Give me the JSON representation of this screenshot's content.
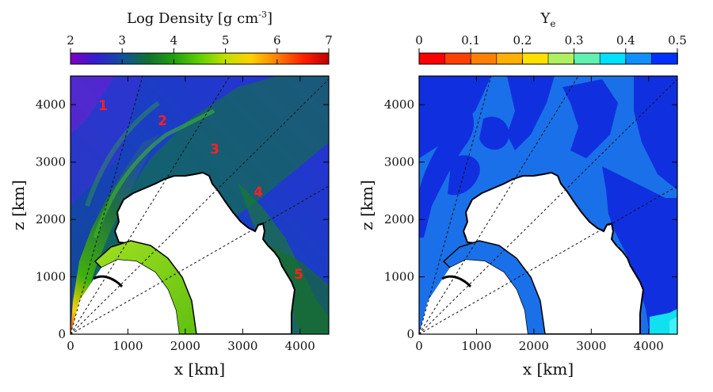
{
  "chart_data": [
    {
      "type": "heatmap",
      "title": "Log Density [g cm",
      "title_sup": "-3",
      "title_end": "]",
      "colorbar": {
        "min": 2,
        "max": 7,
        "ticks": [
          "2",
          "3",
          "4",
          "5",
          "6",
          "7"
        ],
        "colors": [
          "#8000c0",
          "#3020d0",
          "#1050a0",
          "#107030",
          "#20a010",
          "#60d000",
          "#c0e000",
          "#ffd000",
          "#ff8000",
          "#ff2000",
          "#c00000"
        ]
      },
      "xlabel": "x [km]",
      "ylabel": "z [km]",
      "xlim": [
        0,
        4500
      ],
      "ylim": [
        0,
        4500
      ],
      "xticks": [
        "0",
        "1000",
        "2000",
        "3000",
        "4000"
      ],
      "yticks": [
        "0",
        "1000",
        "2000",
        "3000",
        "4000"
      ],
      "annotations": [
        "1",
        "2",
        "3",
        "4",
        "5"
      ],
      "annotation_color": "#ff2020"
    },
    {
      "type": "heatmap",
      "title": "Y",
      "title_sub": "e",
      "colorbar": {
        "min": 0,
        "max": 0.5,
        "ticks": [
          "0",
          "0.1",
          "0.2",
          "0.3",
          "0.4",
          "0.5"
        ],
        "colors": [
          "#ff0000",
          "#ff4000",
          "#ff8000",
          "#ffb000",
          "#ffe000",
          "#b0f060",
          "#60f0b0",
          "#00e0ff",
          "#1090ff",
          "#0030ff"
        ]
      },
      "xlabel": "x [km]",
      "ylabel": "z [km]",
      "xlim": [
        0,
        4500
      ],
      "ylim": [
        0,
        4500
      ],
      "xticks": [
        "0",
        "1000",
        "2000",
        "3000",
        "4000"
      ],
      "yticks": [
        "0",
        "1000",
        "2000",
        "3000",
        "4000"
      ]
    }
  ]
}
